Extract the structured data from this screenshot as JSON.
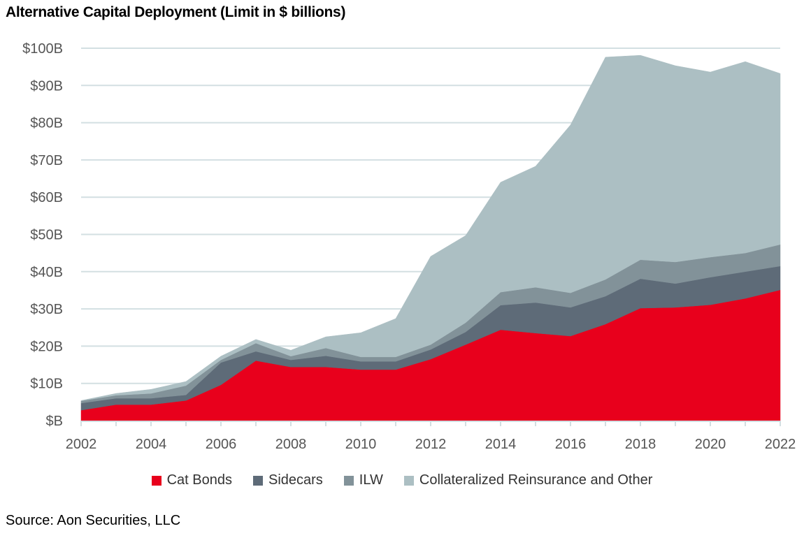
{
  "chart_data": {
    "type": "area",
    "stacked": true,
    "title": "Alternative Capital Deployment (Limit in $ billions)",
    "x": [
      2002,
      2003,
      2004,
      2005,
      2006,
      2007,
      2008,
      2009,
      2010,
      2011,
      2012,
      2013,
      2014,
      2015,
      2016,
      2017,
      2018,
      2019,
      2020,
      2021,
      2022
    ],
    "x_ticks": [
      "2002",
      "2004",
      "2006",
      "2008",
      "2010",
      "2012",
      "2014",
      "2016",
      "2018",
      "2020",
      "2022"
    ],
    "y_ticks": [
      "$B",
      "$10B",
      "$20B",
      "$30B",
      "$40B",
      "$50B",
      "$60B",
      "$70B",
      "$80B",
      "$90B",
      "$100B"
    ],
    "ylim": [
      0,
      100
    ],
    "grid": true,
    "legend_position": "bottom",
    "series": [
      {
        "name": "Cat Bonds",
        "color": "#e8001c",
        "values": [
          2.8,
          4.3,
          4.3,
          5.4,
          9.6,
          16.1,
          14.4,
          14.4,
          13.7,
          13.7,
          16.5,
          20.4,
          24.4,
          23.5,
          22.7,
          25.9,
          30.2,
          30.4,
          31.1,
          32.8,
          35.1
        ]
      },
      {
        "name": "Sidecars",
        "color": "#5e6b78",
        "values": [
          1.9,
          1.7,
          1.7,
          1.5,
          6.0,
          2.5,
          1.9,
          3.0,
          2.2,
          2.2,
          2.6,
          3.4,
          6.6,
          8.2,
          7.7,
          7.5,
          7.9,
          6.4,
          7.4,
          7.2,
          6.4
        ]
      },
      {
        "name": "ILW",
        "color": "#829299",
        "values": [
          0.6,
          0.8,
          1.3,
          2.5,
          0.7,
          2.2,
          1.0,
          2.1,
          1.2,
          1.2,
          1.3,
          2.5,
          3.5,
          4.1,
          3.9,
          4.5,
          5.1,
          5.8,
          5.4,
          5.0,
          5.8
        ]
      },
      {
        "name": "Collateralized Reinsurance and Other",
        "color": "#acbfc3",
        "values": [
          0.1,
          0.5,
          1.1,
          1.1,
          1.0,
          1.0,
          1.6,
          3.0,
          6.5,
          10.3,
          23.7,
          23.4,
          29.5,
          32.5,
          45.1,
          59.7,
          54.9,
          52.7,
          49.7,
          51.4,
          45.9
        ]
      }
    ]
  },
  "source": "Source: Aon Securities, LLC"
}
